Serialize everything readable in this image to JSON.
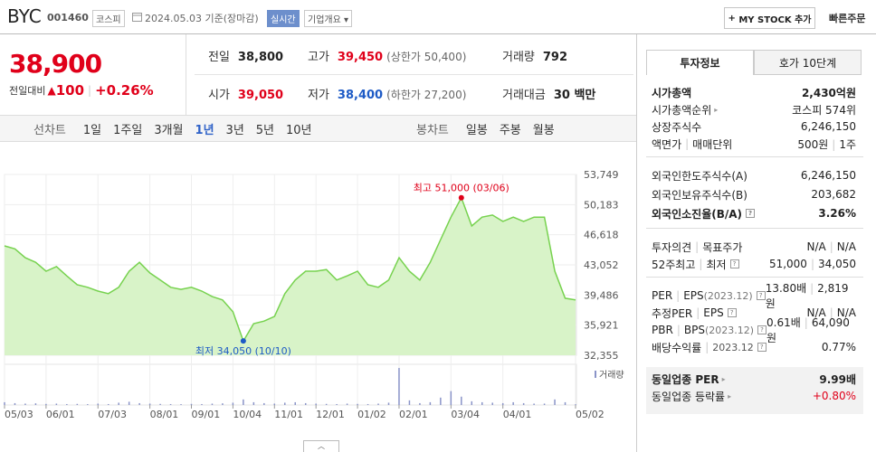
{
  "header": {
    "name": "BYC",
    "code": "001460",
    "market": "코스피",
    "date": "2024.05.03",
    "basis": "기준(장마감)",
    "realtime": "실시간",
    "company_info": "기업개요",
    "my_stock": "MY STOCK 추가",
    "quick_order": "빠른주문"
  },
  "quote": {
    "price": "38,900",
    "change_label": "전일대비",
    "change": "100",
    "change_rate": "+0.26%",
    "color": "#e0001a"
  },
  "summary": [
    [
      {
        "label": "전일",
        "value": "38,800",
        "color": "#222222"
      },
      {
        "label": "고가",
        "value": "39,450",
        "note": "(상한가 50,400)",
        "color": "#e0001a"
      },
      {
        "label": "거래량",
        "value": "792",
        "color": "#222222"
      }
    ],
    [
      {
        "label": "시가",
        "value": "39,050",
        "color": "#e0001a"
      },
      {
        "label": "저가",
        "value": "38,400",
        "note": "(하한가 27,200)",
        "color": "#1e5bc6"
      },
      {
        "label": "거래대금",
        "value": "30 백만",
        "color": "#222222"
      }
    ]
  ],
  "line_tabs": {
    "label": "선차트",
    "items": [
      "1일",
      "1주일",
      "3개월",
      "1년",
      "3년",
      "5년",
      "10년"
    ],
    "selected": 3
  },
  "candle_tabs": {
    "label": "봉차트",
    "items": [
      "일봉",
      "주봉",
      "월봉"
    ]
  },
  "chart_data": {
    "type": "area",
    "x": [
      "05/03",
      "05/10",
      "05/17",
      "05/24",
      "06/01",
      "06/08",
      "06/15",
      "06/22",
      "06/29",
      "07/03",
      "07/10",
      "07/17",
      "07/24",
      "07/28",
      "08/01",
      "08/08",
      "08/16",
      "08/23",
      "09/01",
      "09/08",
      "09/15",
      "09/22",
      "10/04",
      "10/10",
      "10/17",
      "10/24",
      "11/01",
      "11/08",
      "11/15",
      "11/22",
      "12/01",
      "12/08",
      "12/15",
      "12/22",
      "01/02",
      "01/09",
      "01/16",
      "01/23",
      "02/01",
      "02/08",
      "02/16",
      "02/23",
      "02/29",
      "03/04",
      "03/06",
      "03/13",
      "03/20",
      "03/27",
      "04/01",
      "04/08",
      "04/15",
      "04/22",
      "04/26",
      "04/29",
      "04/30",
      "05/02"
    ],
    "values": [
      45300,
      44950,
      43900,
      43350,
      42300,
      42850,
      41750,
      40700,
      40400,
      39950,
      39650,
      40400,
      42300,
      43350,
      42100,
      41250,
      40400,
      40150,
      40400,
      39950,
      39300,
      38900,
      37500,
      34050,
      36100,
      36400,
      36950,
      39650,
      41250,
      42300,
      42300,
      42500,
      41250,
      41750,
      42300,
      40700,
      40400,
      41250,
      43900,
      42300,
      41250,
      43350,
      46050,
      48700,
      51000,
      47650,
      48700,
      48950,
      48200,
      48700,
      48200,
      48700,
      48700,
      42300,
      39100,
      38900
    ],
    "color": "#77d24f",
    "fill": "#d8f3c8",
    "ylim": [
      32355,
      53749
    ],
    "yticks": [
      {
        "value": 32355,
        "label": "32,355"
      },
      {
        "value": 35921,
        "label": "35,921"
      },
      {
        "value": 39486,
        "label": "39,486"
      },
      {
        "value": 43052,
        "label": "43,052"
      },
      {
        "value": 46618,
        "label": "46,618"
      },
      {
        "value": 50183,
        "label": "50,183"
      },
      {
        "value": 53749,
        "label": "53,749"
      }
    ],
    "xticks": [
      "05/03",
      "06/01",
      "07/03",
      "08/01",
      "09/01",
      "10/04",
      "11/01",
      "12/01",
      "01/02",
      "02/01",
      "03/04",
      "04/01",
      "05/02"
    ],
    "grid": true,
    "annotations": [
      {
        "text": "최고 51,000 (03/06)",
        "x": "03/06",
        "value": 51000,
        "color": "#e0001a",
        "side": "above"
      },
      {
        "text": "최저 34,050 (10/10)",
        "x": "10/10",
        "value": 34050,
        "color": "#1e5bc6",
        "side": "below"
      }
    ],
    "volume": {
      "label": "거래량",
      "color": "#8a94c8",
      "ylim": [
        0,
        42000
      ],
      "values": [
        3000,
        2000,
        1500,
        1800,
        1200,
        1500,
        1000,
        1200,
        900,
        1500,
        1000,
        2500,
        3500,
        2000,
        1500,
        1200,
        1000,
        900,
        1200,
        1000,
        1500,
        1800,
        2500,
        6000,
        3000,
        2000,
        1500,
        2500,
        3000,
        2000,
        1500,
        1200,
        1000,
        1500,
        1200,
        1000,
        1500,
        2500,
        40000,
        5000,
        2000,
        3000,
        8000,
        15000,
        9000,
        4000,
        3000,
        2500,
        2000,
        3000,
        2000,
        1500,
        1500,
        6000,
        3000,
        792
      ]
    }
  },
  "side": {
    "tabs": [
      "투자정보",
      "호가 10단계"
    ],
    "selected": 0,
    "sections": [
      {
        "rows": [
          {
            "label": [
              "시가총액"
            ],
            "value": [
              "2,430억원"
            ],
            "bold": true
          },
          {
            "label": [
              "시가총액순위"
            ],
            "arrow": true,
            "value": [
              "코스피 574위"
            ]
          },
          {
            "label": [
              "상장주식수"
            ],
            "value": [
              "6,246,150"
            ]
          },
          {
            "label": [
              "액면가",
              "매매단위"
            ],
            "value": [
              "500원",
              "1주"
            ]
          }
        ]
      },
      {
        "rows": [
          {
            "label": [
              "외국인한도주식수(A)"
            ],
            "value": [
              "6,246,150"
            ]
          },
          {
            "label": [
              "외국인보유주식수(B)"
            ],
            "value": [
              "203,682"
            ]
          },
          {
            "label": [
              "외국인소진율(B/A)"
            ],
            "help": true,
            "value": [
              "3.26%"
            ],
            "bold": true
          }
        ]
      },
      {
        "rows": [
          {
            "label": [
              "투자의견",
              "목표주가"
            ],
            "value": [
              "N/A",
              "N/A"
            ]
          },
          {
            "label": [
              "52주최고",
              "최저"
            ],
            "help": true,
            "value": [
              "51,000",
              "34,050"
            ]
          }
        ]
      },
      {
        "rows": [
          {
            "label": [
              "PER",
              "EPS"
            ],
            "note": "(2023.12)",
            "help": true,
            "value": [
              "13.80배",
              "2,819원"
            ]
          },
          {
            "label": [
              "추정PER",
              "EPS"
            ],
            "help": true,
            "value": [
              "N/A",
              "N/A"
            ]
          },
          {
            "label": [
              "PBR",
              "BPS"
            ],
            "note": "(2023.12)",
            "help": true,
            "value": [
              "0.61배",
              "64,090원"
            ]
          },
          {
            "label": [
              "배당수익률",
              "2023.12"
            ],
            "help": true,
            "value": [
              "0.77%"
            ]
          }
        ]
      },
      {
        "shaded": true,
        "rows": [
          {
            "label": [
              "동일업종 PER"
            ],
            "arrow": true,
            "value": [
              "9.99배"
            ],
            "bold": true
          },
          {
            "label": [
              "동일업종 등락률"
            ],
            "arrow": true,
            "value": [
              "+0.80%"
            ],
            "color": "#e0001a"
          }
        ]
      }
    ]
  }
}
